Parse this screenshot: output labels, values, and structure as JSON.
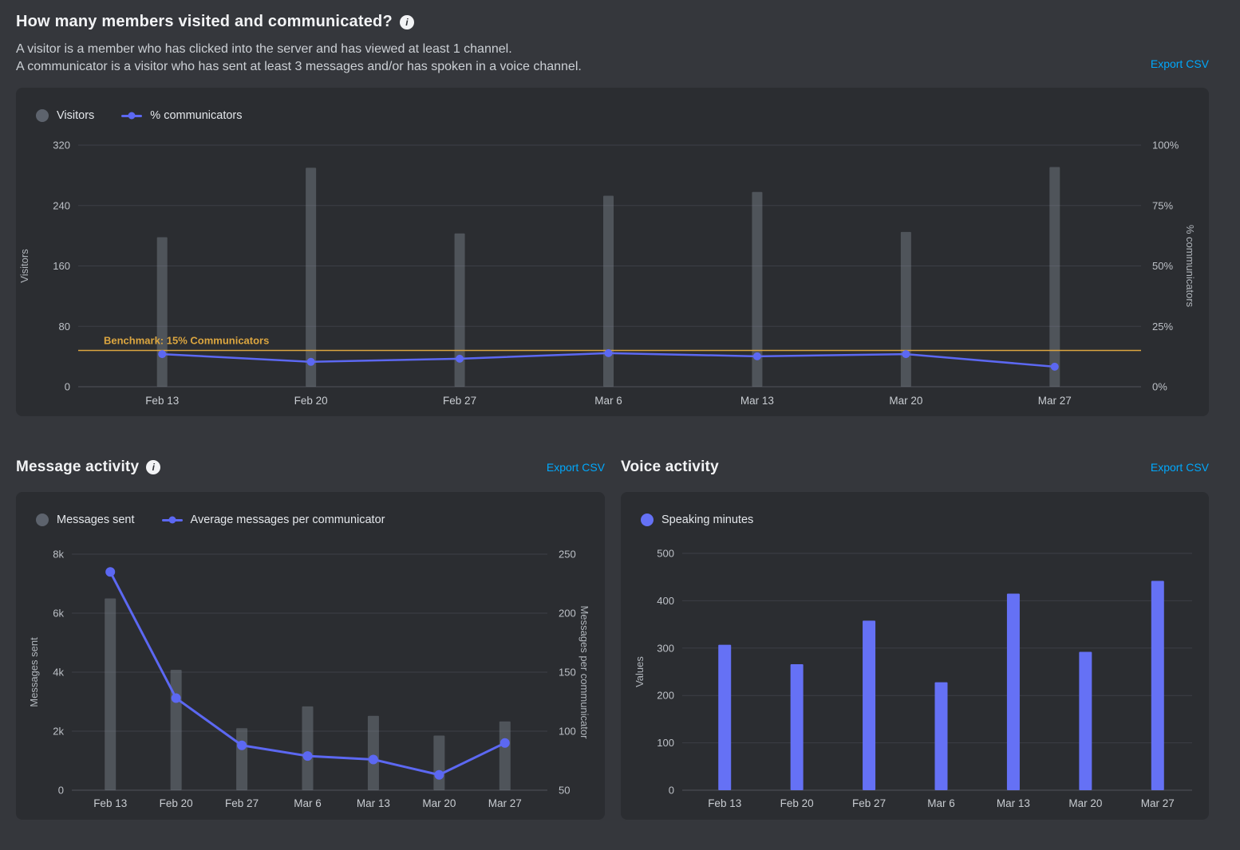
{
  "page": {
    "title": "How many members visited and communicated?",
    "subtitle_line1": "A visitor is a member who has clicked into the server and has viewed at least 1 channel.",
    "subtitle_line2": "A communicator is a visitor who has sent at least 3 messages and/or has spoken in a voice channel.",
    "export_csv": "Export CSV"
  },
  "icons": {
    "info": "i"
  },
  "sections": {
    "message_activity": {
      "title": "Message activity",
      "export_csv": "Export CSV"
    },
    "voice_activity": {
      "title": "Voice activity",
      "export_csv": "Export CSV"
    }
  },
  "colors": {
    "background": "#35373c",
    "card": "#2b2d31",
    "grid": "#3c3f46",
    "axis_zero": "#50535a",
    "tick": "#bdc1c7",
    "date_tick": "#c8ccd1",
    "axis_title": "#b0b5bb",
    "text_primary": "#f2f3f5",
    "text_secondary": "#ccd0d5",
    "link": "#00a8fc",
    "blurple": "#5c68f2",
    "bar_gray": "rgba(135,142,153,0.4)",
    "benchmark_gold": "#dca640"
  },
  "chart_data": [
    {
      "id": "visitors-communicators",
      "type": "bar",
      "subtype": "bar+line combo, dual axis",
      "legend_position": "top-left",
      "grid": true,
      "categories": [
        "Feb 13",
        "Feb 20",
        "Feb 27",
        "Mar 6",
        "Mar 13",
        "Mar 20",
        "Mar 27"
      ],
      "series": [
        {
          "name": "Visitors",
          "type": "bar",
          "axis": "left",
          "color": "rgba(135,142,153,0.4)",
          "values": [
            198,
            290,
            203,
            253,
            258,
            205,
            291
          ]
        },
        {
          "name": "% communicators",
          "type": "line",
          "axis": "right",
          "color": "#5c68f2",
          "values": [
            13.5,
            10.3,
            11.6,
            13.9,
            12.6,
            13.5,
            8.3
          ]
        }
      ],
      "left_axis": {
        "title": "Visitors",
        "min": 0,
        "max": 320,
        "ticks": [
          0,
          80,
          160,
          240,
          320
        ],
        "tick_labels": [
          "0",
          "80",
          "160",
          "240",
          "320"
        ]
      },
      "right_axis": {
        "title": "% communicators",
        "min": 0,
        "max": 100,
        "ticks": [
          0,
          25,
          50,
          75,
          100
        ],
        "tick_labels": [
          "0%",
          "25%",
          "50%",
          "75%",
          "100%"
        ]
      },
      "benchmark": {
        "value": 15,
        "axis": "right",
        "label": "Benchmark: 15% Communicators",
        "color": "#dca640"
      },
      "legend": [
        {
          "label": "Visitors",
          "marker": "circle",
          "color": "#5d636d"
        },
        {
          "label": "% communicators",
          "marker": "line-dot",
          "color": "#5c68f2"
        }
      ]
    },
    {
      "id": "message-activity",
      "type": "bar",
      "subtype": "bar+line combo, dual axis",
      "legend_position": "top-left",
      "grid": true,
      "categories": [
        "Feb 13",
        "Feb 20",
        "Feb 27",
        "Mar 6",
        "Mar 13",
        "Mar 20",
        "Mar 27"
      ],
      "series": [
        {
          "name": "Messages sent",
          "type": "bar",
          "axis": "left",
          "color": "rgba(135,142,153,0.4)",
          "values": [
            6500,
            4080,
            2100,
            2840,
            2520,
            1850,
            2330
          ]
        },
        {
          "name": "Average messages per communicator",
          "type": "line",
          "axis": "right",
          "color": "#5c68f2",
          "values": [
            235,
            128,
            88,
            79,
            76,
            63,
            90
          ]
        }
      ],
      "left_axis": {
        "title": "Messages sent",
        "min": 0,
        "max": 8000,
        "ticks": [
          0,
          2000,
          4000,
          6000,
          8000
        ],
        "tick_labels": [
          "0",
          "2k",
          "4k",
          "6k",
          "8k"
        ]
      },
      "right_axis": {
        "title": "Messages per communicator",
        "min": 50,
        "max": 250,
        "ticks": [
          50,
          100,
          150,
          200,
          250
        ],
        "tick_labels": [
          "50",
          "100",
          "150",
          "200",
          "250"
        ]
      },
      "legend": [
        {
          "label": "Messages sent",
          "marker": "circle",
          "color": "#5d636d"
        },
        {
          "label": "Average messages per communicator",
          "marker": "line-dot",
          "color": "#5c68f2"
        }
      ]
    },
    {
      "id": "voice-activity",
      "type": "bar",
      "subtype": "single series bar",
      "legend_position": "top-left",
      "grid": true,
      "categories": [
        "Feb 13",
        "Feb 20",
        "Feb 27",
        "Mar 6",
        "Mar 13",
        "Mar 20",
        "Mar 27"
      ],
      "series": [
        {
          "name": "Speaking minutes",
          "type": "bar",
          "axis": "left",
          "color": "#6571f5",
          "values": [
            307,
            266,
            358,
            228,
            415,
            292,
            442
          ]
        }
      ],
      "left_axis": {
        "title": "Values",
        "min": 0,
        "max": 500,
        "ticks": [
          0,
          100,
          200,
          300,
          400,
          500
        ],
        "tick_labels": [
          "0",
          "100",
          "200",
          "300",
          "400",
          "500"
        ]
      },
      "legend": [
        {
          "label": "Speaking minutes",
          "marker": "circle",
          "color": "#6571f5"
        }
      ]
    }
  ]
}
